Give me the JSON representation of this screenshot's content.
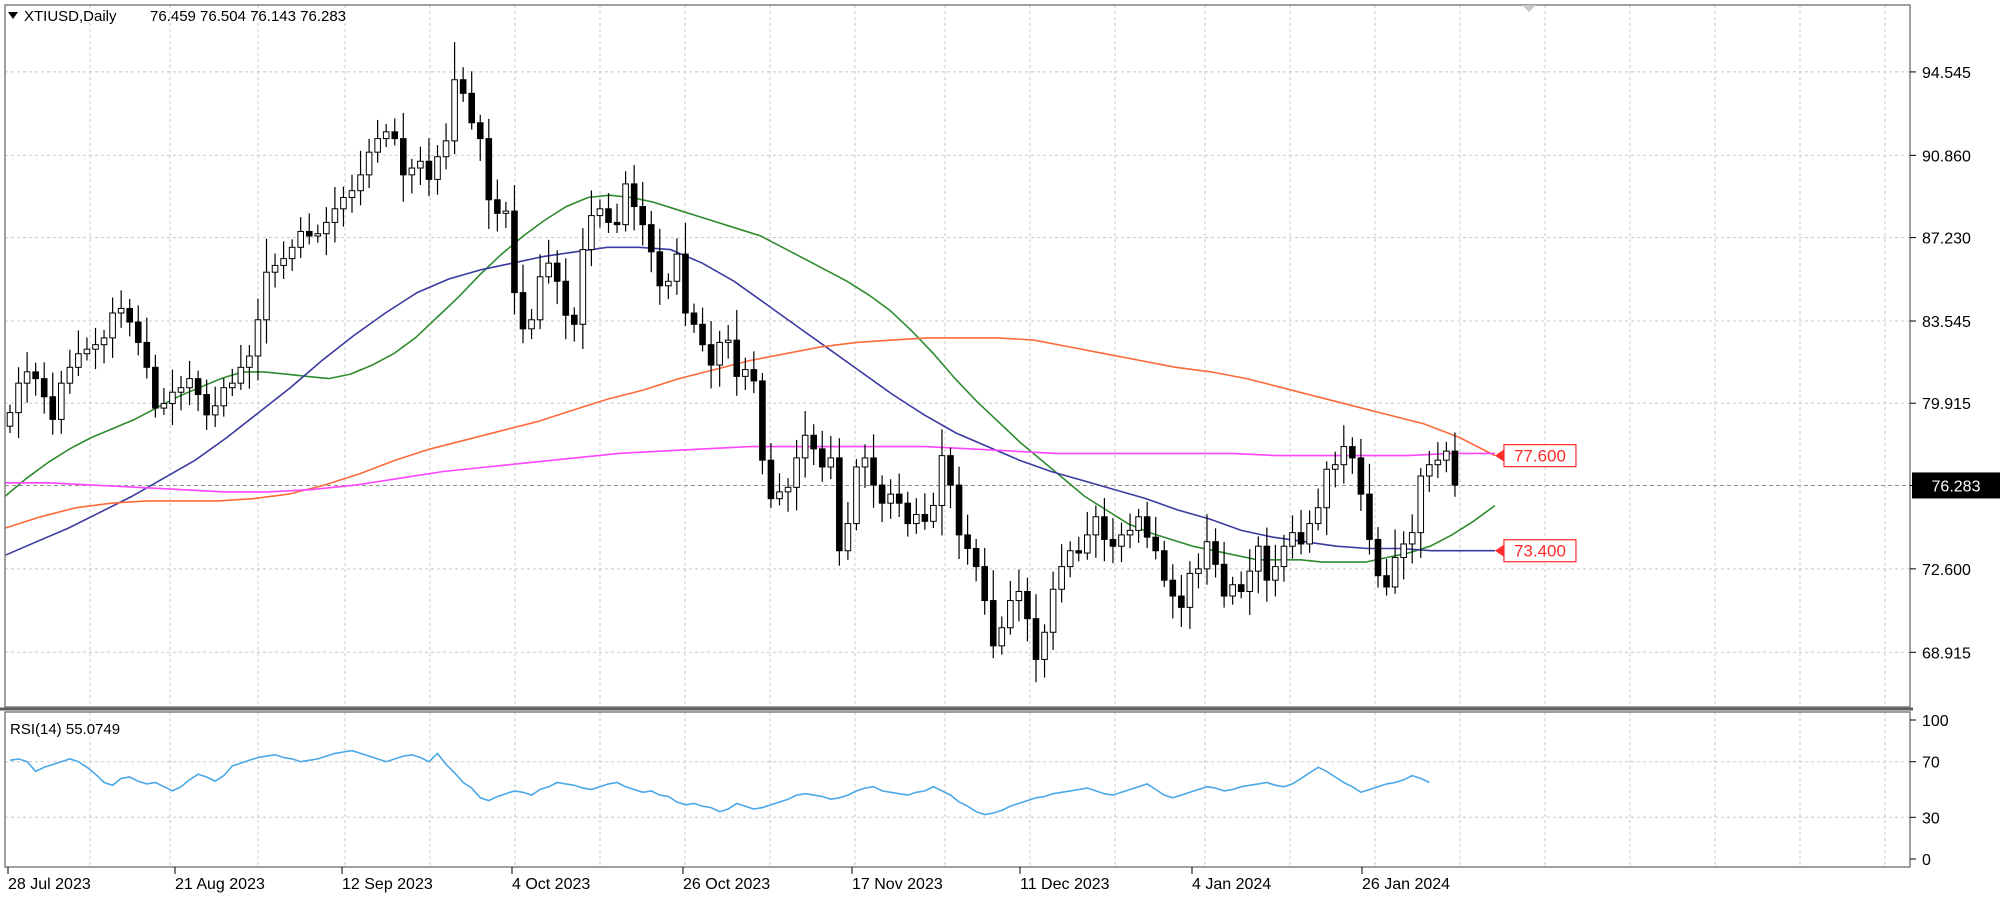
{
  "header": {
    "symbol_line": "XTIUSD,Daily",
    "ohlc": "76.459 76.504 76.143 76.283"
  },
  "indicator": {
    "label": "RSI(14) 55.0749"
  },
  "colors": {
    "bull_body": "#ffffff",
    "bear_body": "#000000",
    "candle_outline": "#000000",
    "ma_green": "#2e8b2e",
    "ma_blue": "#3a3aa0",
    "ma_orange": "#ff6a3a",
    "ma_magenta": "#ff44ff",
    "rsi_line": "#4aa8e8",
    "grid": "#c8c8c8",
    "price_label_red": "#ff2a2a"
  },
  "chart_data": [
    {
      "type": "candlestick",
      "title": "XTIUSD,Daily",
      "ylim": [
        66.5,
        97.5
      ],
      "y_ticks": [
        "94.545",
        "90.860",
        "87.230",
        "83.545",
        "79.915",
        "76.283",
        "72.600",
        "68.915"
      ],
      "x_ticks": [
        "28 Jul 2023",
        "21 Aug 2023",
        "12 Sep 2023",
        "4 Oct 2023",
        "26 Oct 2023",
        "17 Nov 2023",
        "11 Dec 2023",
        "4 Jan 2024",
        "26 Jan 2024"
      ],
      "grid": true,
      "current_price": "76.283",
      "level_labels": [
        {
          "text": "77.600",
          "value": 77.6
        },
        {
          "text": "73.400",
          "value": 73.4
        }
      ],
      "close": [
        79.5,
        80.8,
        81.3,
        81.0,
        80.2,
        79.2,
        80.8,
        81.5,
        82.1,
        82.3,
        82.5,
        82.8,
        83.9,
        84.1,
        83.5,
        82.6,
        81.5,
        79.7,
        79.9,
        80.4,
        80.6,
        81.0,
        80.3,
        79.4,
        79.8,
        80.6,
        80.8,
        81.5,
        82.0,
        83.6,
        85.7,
        86.0,
        86.3,
        86.8,
        87.5,
        87.3,
        87.4,
        87.9,
        88.5,
        89.0,
        89.3,
        90.0,
        91.0,
        91.6,
        91.9,
        91.6,
        90.0,
        90.3,
        90.6,
        89.8,
        90.8,
        91.5,
        94.2,
        93.6,
        92.3,
        91.6,
        88.9,
        88.3,
        88.4,
        84.8,
        83.2,
        83.6,
        85.5,
        86.1,
        85.3,
        83.8,
        83.4,
        86.7,
        88.2,
        88.5,
        87.9,
        87.8,
        89.6,
        88.6,
        87.8,
        86.6,
        85.1,
        85.3,
        86.5,
        83.9,
        83.4,
        82.5,
        81.6,
        82.6,
        82.7,
        81.1,
        81.4,
        80.9,
        77.4,
        75.7,
        76.0,
        76.2,
        77.5,
        78.5,
        77.9,
        77.1,
        77.5,
        73.4,
        74.6,
        77.1,
        77.5,
        76.3,
        75.5,
        75.9,
        75.5,
        74.6,
        75.0,
        74.7,
        75.4,
        77.6,
        76.3,
        74.1,
        73.5,
        72.7,
        71.2,
        69.2,
        70.0,
        71.2,
        71.6,
        70.4,
        68.6,
        69.8,
        71.7,
        72.7,
        73.4,
        73.3,
        74.1,
        74.9,
        73.9,
        73.6,
        74.1,
        74.3,
        74.9,
        74.0,
        73.4,
        72.1,
        71.4,
        70.9,
        72.4,
        72.6,
        73.8,
        72.8,
        71.4,
        71.9,
        71.6,
        72.5,
        73.6,
        72.1,
        72.7,
        73.6,
        74.2,
        73.7,
        74.6,
        75.3,
        77.0,
        77.2,
        78.0,
        77.5,
        75.9,
        73.9,
        72.3,
        71.8,
        73.1,
        73.7,
        74.2,
        76.7,
        77.2,
        77.4,
        77.8,
        76.3
      ],
      "series": [
        {
          "name": "",
          "values": [
            75.8,
            76.6,
            77.3,
            77.9,
            78.4,
            78.8,
            79.2,
            79.7,
            80.2,
            80.6,
            81.0,
            81.3,
            81.3,
            81.2,
            81.1,
            81.0,
            81.2,
            81.6,
            82.1,
            82.8,
            83.7,
            84.6,
            85.6,
            86.5,
            87.3,
            88.0,
            88.6,
            89.0,
            89.1,
            89.0,
            88.8,
            88.5,
            88.2,
            87.9,
            87.6,
            87.3,
            86.8,
            86.3,
            85.8,
            85.3,
            84.7,
            84.0,
            83.1,
            82.1,
            81.0,
            80.0,
            79.1,
            78.2,
            77.4,
            76.6,
            75.8,
            75.2,
            74.6,
            74.2,
            73.9,
            73.6,
            73.4,
            73.2,
            73.0,
            73.0,
            73.0,
            72.9,
            72.9,
            72.9,
            73.1,
            73.3,
            73.6,
            74.1,
            74.7,
            75.4
          ]
        },
        {
          "name": "",
          "values": [
            73.2,
            73.8,
            74.4,
            75.1,
            75.8,
            76.6,
            77.4,
            78.4,
            79.5,
            80.6,
            81.8,
            82.9,
            83.9,
            84.8,
            85.4,
            85.8,
            86.1,
            86.4,
            86.6,
            86.8,
            86.8,
            86.7,
            86.1,
            85.3,
            84.3,
            83.3,
            82.3,
            81.3,
            80.3,
            79.4,
            78.6,
            78.0,
            77.4,
            76.9,
            76.5,
            76.1,
            75.7,
            75.2,
            74.8,
            74.3,
            74.0,
            73.8,
            73.6,
            73.5,
            73.5,
            73.4,
            73.4,
            73.4
          ]
        },
        {
          "name": "",
          "values": [
            74.4,
            74.9,
            75.3,
            75.5,
            75.6,
            75.6,
            75.6,
            75.7,
            75.9,
            76.3,
            76.8,
            77.4,
            77.9,
            78.3,
            78.7,
            79.1,
            79.6,
            80.1,
            80.5,
            81.0,
            81.4,
            81.8,
            82.1,
            82.4,
            82.6,
            82.7,
            82.8,
            82.8,
            82.8,
            82.7,
            82.4,
            82.1,
            81.8,
            81.5,
            81.3,
            81.0,
            80.6,
            80.2,
            79.8,
            79.4,
            79.0,
            78.4,
            77.6
          ]
        },
        {
          "name": "",
          "values": [
            76.4,
            76.4,
            76.3,
            76.2,
            76.1,
            76.0,
            76.0,
            76.1,
            76.3,
            76.6,
            76.9,
            77.1,
            77.3,
            77.5,
            77.7,
            77.8,
            77.9,
            78.0,
            78.0,
            78.0,
            78.0,
            78.0,
            77.9,
            77.8,
            77.7,
            77.7,
            77.7,
            77.7,
            77.7,
            77.6,
            77.6,
            77.6,
            77.6,
            77.7,
            77.7
          ]
        }
      ]
    },
    {
      "type": "line",
      "title": "RSI(14) 55.0749",
      "ylim": [
        0,
        100
      ],
      "y_ticks": [
        "100",
        "70",
        "30",
        "0"
      ],
      "series": [
        {
          "name": "",
          "values": [
            71,
            72,
            70,
            63,
            66,
            68,
            70,
            72,
            70,
            66,
            61,
            55,
            53,
            58,
            59,
            56,
            54,
            55,
            52,
            49,
            52,
            57,
            61,
            59,
            56,
            60,
            67,
            69,
            71,
            73,
            74,
            75,
            73,
            72,
            70,
            71,
            72,
            74,
            76,
            77,
            78,
            76,
            74,
            72,
            70,
            72,
            74,
            75,
            73,
            70,
            76,
            68,
            62,
            55,
            51,
            44,
            42,
            45,
            47,
            49,
            48,
            46,
            50,
            52,
            55,
            54,
            53,
            51,
            50,
            52,
            54,
            55,
            52,
            50,
            48,
            49,
            46,
            45,
            41,
            39,
            40,
            38,
            37,
            34,
            36,
            40,
            38,
            36,
            37,
            39,
            41,
            43,
            46,
            47,
            46,
            45,
            43,
            44,
            46,
            49,
            51,
            52,
            49,
            48,
            47,
            46,
            48,
            49,
            52,
            49,
            46,
            41,
            38,
            34,
            32,
            33,
            35,
            38,
            40,
            42,
            44,
            45,
            47,
            48,
            49,
            50,
            51,
            49,
            47,
            46,
            48,
            50,
            52,
            54,
            50,
            46,
            44,
            46,
            48,
            50,
            52,
            51,
            49,
            50,
            52,
            53,
            54,
            55,
            53,
            52,
            54,
            58,
            62,
            66,
            63,
            59,
            55,
            52,
            48,
            50,
            52,
            54,
            55,
            57,
            60,
            58,
            55
          ]
        }
      ]
    }
  ]
}
